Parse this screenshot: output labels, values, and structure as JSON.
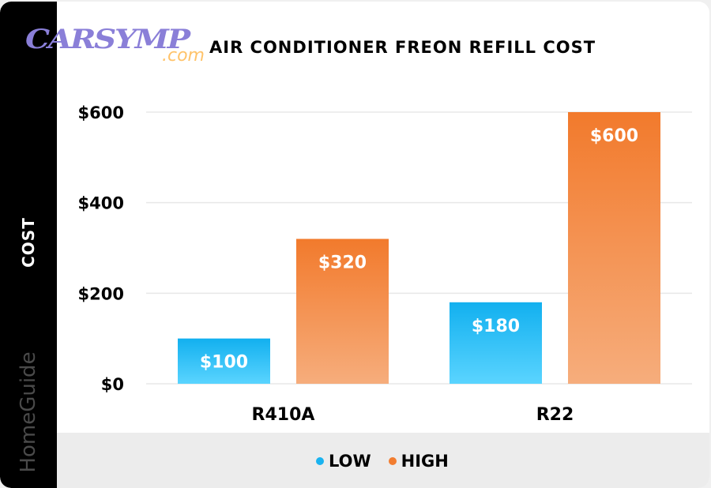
{
  "logo": {
    "text": "CARSYMP",
    "suffix": ".com"
  },
  "watermark": "HomeGuide",
  "chart_data": {
    "type": "bar",
    "title": "AIR CONDITIONER FREON REFILL COST",
    "ylabel": "COST",
    "xlabel": "",
    "categories": [
      "R410A",
      "R22"
    ],
    "series": [
      {
        "name": "LOW",
        "values": [
          100,
          180
        ],
        "labels": [
          "$100",
          "$180"
        ],
        "color": "#1ab3f0"
      },
      {
        "name": "HIGH",
        "values": [
          320,
          600
        ],
        "labels": [
          "$320",
          "$600"
        ],
        "color": "#f27d30"
      }
    ],
    "ylim": [
      0,
      600
    ],
    "yticks": [
      0,
      200,
      400,
      600
    ],
    "ytick_labels": [
      "$0",
      "$200",
      "$400",
      "$600"
    ],
    "grid": true,
    "legend": "bottom"
  }
}
